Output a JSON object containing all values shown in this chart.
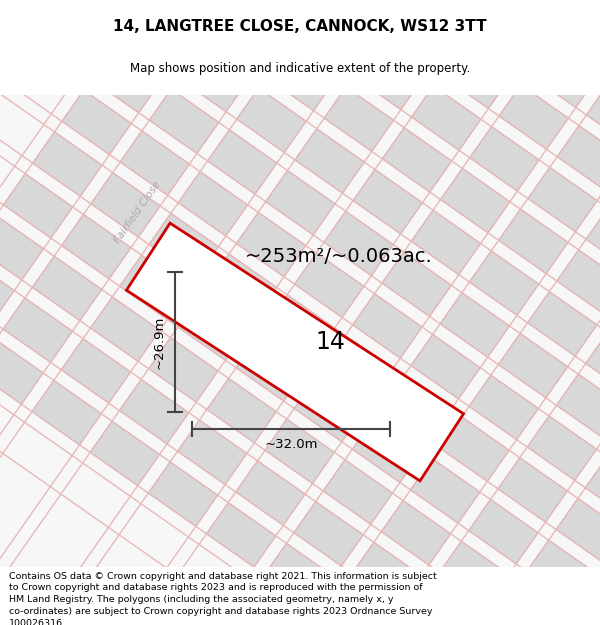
{
  "title": "14, LANGTREE CLOSE, CANNOCK, WS12 3TT",
  "subtitle": "Map shows position and indicative extent of the property.",
  "area_text": "~253m²/~0.063ac.",
  "property_number": "14",
  "dim_width": "~32.0m",
  "dim_height": "~26.9m",
  "street_label": "Fairfield Close",
  "footer": "Contains OS data © Crown copyright and database right 2021. This information is subject to Crown copyright and database rights 2023 and is reproduced with the permission of HM Land Registry. The polygons (including the associated geometry, namely x, y co-ordinates) are subject to Crown copyright and database rights 2023 Ordnance Survey 100026316.",
  "map_bg": "#f7f7f7",
  "road_color": "#e8b8b8",
  "block_fill": "#d8d8d8",
  "block_edge": "#bbbbbb",
  "property_fill": "white",
  "property_edge": "#cc0000",
  "dim_line_color": "#444444",
  "title_fontsize": 11,
  "subtitle_fontsize": 8.5,
  "area_fontsize": 15,
  "footer_fontsize": 6.8
}
